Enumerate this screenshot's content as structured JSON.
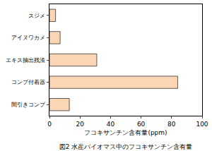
{
  "chart_data": {
    "type": "bar",
    "orientation": "horizontal",
    "title": "図2 水産バイオマス中のフコキサンチン含有量",
    "x_label": "フコキサンチン含有量(ppm)",
    "categories": [
      "スジメ",
      "アイヌワカメ",
      "エキス抽出残渣",
      "コンブ付着器",
      "間引きコンブ"
    ],
    "values": [
      4,
      7,
      31,
      84,
      13
    ],
    "color": "#fcd5b4",
    "xlim": [
      0,
      100
    ],
    "xticks": [
      0,
      20,
      40,
      60,
      80,
      100
    ],
    "grid": false
  }
}
